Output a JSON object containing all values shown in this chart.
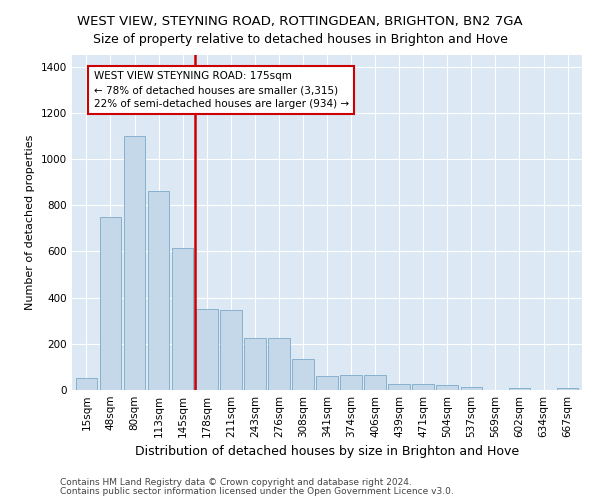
{
  "title": "WEST VIEW, STEYNING ROAD, ROTTINGDEAN, BRIGHTON, BN2 7GA",
  "subtitle": "Size of property relative to detached houses in Brighton and Hove",
  "xlabel": "Distribution of detached houses by size in Brighton and Hove",
  "ylabel": "Number of detached properties",
  "footnote1": "Contains HM Land Registry data © Crown copyright and database right 2024.",
  "footnote2": "Contains public sector information licensed under the Open Government Licence v3.0.",
  "categories": [
    "15sqm",
    "48sqm",
    "80sqm",
    "113sqm",
    "145sqm",
    "178sqm",
    "211sqm",
    "243sqm",
    "276sqm",
    "308sqm",
    "341sqm",
    "374sqm",
    "406sqm",
    "439sqm",
    "471sqm",
    "504sqm",
    "537sqm",
    "569sqm",
    "602sqm",
    "634sqm",
    "667sqm"
  ],
  "values": [
    50,
    750,
    1100,
    860,
    615,
    350,
    345,
    225,
    225,
    135,
    60,
    65,
    65,
    25,
    25,
    20,
    12,
    0,
    8,
    0,
    8
  ],
  "bar_color": "#c5d8ea",
  "bar_edge_color": "#7aaac8",
  "vline_color": "#cc0000",
  "annotation_text": "WEST VIEW STEYNING ROAD: 175sqm\n← 78% of detached houses are smaller (3,315)\n22% of semi-detached houses are larger (934) →",
  "annotation_box_color": "#ffffff",
  "annotation_box_edge": "#cc0000",
  "ylim": [
    0,
    1450
  ],
  "yticks": [
    0,
    200,
    400,
    600,
    800,
    1000,
    1200,
    1400
  ],
  "plot_bg_color": "#dce9f5",
  "fig_bg_color": "#ffffff",
  "title_fontsize": 9.5,
  "ylabel_fontsize": 8,
  "xlabel_fontsize": 9,
  "footnote_fontsize": 6.5,
  "tick_fontsize": 7.5,
  "annot_fontsize": 7.5
}
